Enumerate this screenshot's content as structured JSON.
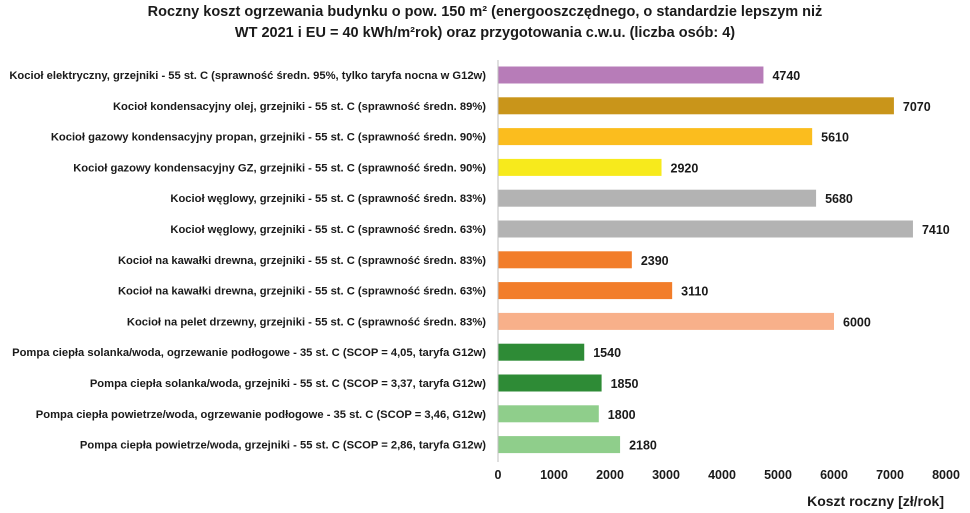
{
  "chart_data": {
    "type": "bar",
    "orientation": "horizontal",
    "title_line1": "Roczny koszt ogrzewania budynku o pow. 150 m² (energooszczędnego, o standardzie lepszym niż",
    "title_line2": "WT 2021 i EU = 40 kWh/m²rok) oraz przygotowania c.w.u. (liczba osób: 4)",
    "xlabel": "Koszt roczny [zł/rok]",
    "ylabel": "",
    "xlim": [
      0,
      8000
    ],
    "xticks": [
      0,
      1000,
      2000,
      3000,
      4000,
      5000,
      6000,
      7000,
      8000
    ],
    "grid": false,
    "legend": "none",
    "categories": [
      "Kocioł  elektryczny,  grzejniki - 55 st. C  (sprawność średn. 95%, tylko taryfa nocna w G12w)",
      "Kocioł  kondensacyjny olej,  grzejniki - 55 st. C  (sprawność średn. 89%)",
      "Kocioł gazowy kondensacyjny propan, grzejniki - 55 st. C  (sprawność średn. 90%)",
      "Kocioł gazowy kondensacyjny GZ, grzejniki - 55 st. C  (sprawność średn. 90%)",
      "Kocioł węglowy,  grzejniki - 55 st. C  (sprawność średn. 83%)",
      "Kocioł węglowy,  grzejniki - 55 st. C  (sprawność średn. 63%)",
      "Kocioł na kawałki drewna, grzejniki - 55 st. C  (sprawność średn. 83%)",
      "Kocioł na kawałki drewna, grzejniki - 55 st. C  (sprawność średn. 63%)",
      "Kocioł na pelet drzewny, grzejniki - 55 st. C (sprawność średn. 83%)",
      "Pompa ciepła solanka/woda, ogrzewanie podłogowe - 35 st. C  (SCOP = 4,05, taryfa G12w)",
      "Pompa ciepła solanka/woda, grzejniki - 55 st. C (SCOP = 3,37, taryfa G12w)",
      "Pompa ciepła powietrze/woda, ogrzewanie podłogowe - 35 st. C (SCOP = 3,46, G12w)",
      "Pompa ciepła powietrze/woda, grzejniki - 55 st. C (SCOP = 2,86, taryfa G12w)"
    ],
    "values": [
      4740,
      7070,
      5610,
      2920,
      5680,
      7410,
      2390,
      3110,
      6000,
      1540,
      1850,
      1800,
      2180
    ],
    "colors": [
      "#b77cb8",
      "#c9951a",
      "#fbbd1e",
      "#f7ea1c",
      "#b3b3b3",
      "#b3b3b3",
      "#f27d2a",
      "#f27d2a",
      "#f8b08a",
      "#2e8b36",
      "#2e8b36",
      "#8fce8b",
      "#8fce8b"
    ]
  }
}
